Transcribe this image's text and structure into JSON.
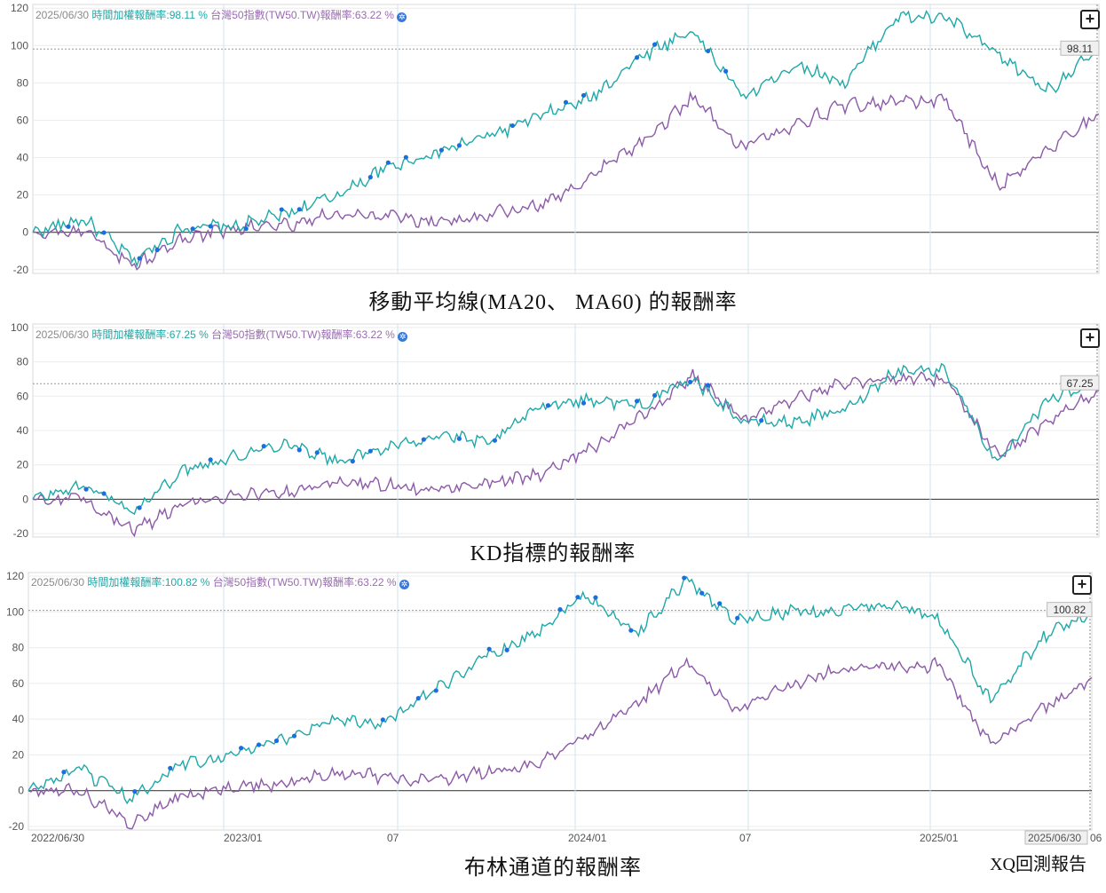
{
  "charts": [
    {
      "caption": "移動平均線(MA20、 MA60) 的報酬率",
      "legend": {
        "date": "2025/06/30",
        "s1": "時間加權報酬率:98.11 %",
        "s2": "台灣50指數(TW50.TW)報酬率:63.22 %"
      },
      "end_label": "98.11"
    },
    {
      "caption": "KD指標的報酬率",
      "legend": {
        "date": "2025/06/30",
        "s1": "時間加權報酬率:67.25 %",
        "s2": "台灣50指數(TW50.TW)報酬率:63.22 %"
      },
      "end_label": "67.25"
    },
    {
      "caption": "布林通道的報酬率",
      "legend": {
        "date": "2025/06/30",
        "s1": "時間加權報酬率:100.82 %",
        "s2": "台灣50指數(TW50.TW)報酬率:63.22 %"
      },
      "end_label": "100.82"
    }
  ],
  "x_axis": {
    "labels": [
      "2022/06/30",
      "2023/01",
      "07",
      "2024/01",
      "07",
      "2025/01",
      "2025/06/30",
      "06"
    ]
  },
  "credit": "XQ回測報告",
  "colors": {
    "strategy": "#1fa8a8",
    "benchmark": "#8c5aa8",
    "trade": "#1a6fe0"
  },
  "chart_data": [
    {
      "type": "line",
      "title": "移動平均線(MA20、 MA60) 的報酬率",
      "ylim": [
        -22,
        122
      ],
      "yticks": [
        -20,
        0,
        20,
        40,
        60,
        80,
        100,
        120
      ],
      "x": [
        "2022-06",
        "2022-08",
        "2022-10",
        "2022-12",
        "2023-02",
        "2023-04",
        "2023-06",
        "2023-08",
        "2023-10",
        "2023-12",
        "2024-02",
        "2024-04",
        "2024-06",
        "2024-07",
        "2024-08",
        "2024-10",
        "2024-12",
        "2025-02",
        "2025-03",
        "2025-04",
        "2025-05",
        "2025-06"
      ],
      "series": [
        {
          "name": "時間加權報酬率",
          "values": [
            0,
            7,
            -15,
            3,
            3,
            10,
            20,
            35,
            43,
            52,
            62,
            72,
            95,
            108,
            72,
            90,
            80,
            115,
            115,
            95,
            76,
            98.11
          ]
        },
        {
          "name": "台灣50指數(TW50.TW)報酬率",
          "values": [
            0,
            0,
            -18,
            -3,
            2,
            4,
            10,
            8,
            5,
            10,
            14,
            30,
            48,
            72,
            45,
            58,
            68,
            70,
            70,
            25,
            45,
            63.22
          ]
        }
      ],
      "grid": true
    },
    {
      "type": "line",
      "title": "KD指標的報酬率",
      "ylim": [
        -22,
        102
      ],
      "yticks": [
        -20,
        0,
        20,
        40,
        60,
        80,
        100
      ],
      "x": [
        "2022-06",
        "2022-08",
        "2022-10",
        "2022-12",
        "2023-02",
        "2023-04",
        "2023-06",
        "2023-08",
        "2023-10",
        "2023-12",
        "2024-02",
        "2024-04",
        "2024-06",
        "2024-07",
        "2024-08",
        "2024-10",
        "2024-12",
        "2025-02",
        "2025-03",
        "2025-04",
        "2025-05",
        "2025-06"
      ],
      "series": [
        {
          "name": "時間加權報酬率",
          "values": [
            0,
            8,
            -7,
            18,
            25,
            33,
            22,
            30,
            38,
            32,
            55,
            58,
            55,
            70,
            45,
            45,
            52,
            75,
            75,
            20,
            58,
            67.25
          ]
        },
        {
          "name": "台灣50指數(TW50.TW)報酬率",
          "values": [
            0,
            0,
            -18,
            -3,
            2,
            4,
            10,
            8,
            5,
            10,
            14,
            30,
            48,
            72,
            45,
            58,
            68,
            70,
            70,
            25,
            45,
            63.22
          ]
        }
      ],
      "grid": true
    },
    {
      "type": "line",
      "title": "布林通道的報酬率",
      "ylim": [
        -22,
        122
      ],
      "yticks": [
        -20,
        0,
        20,
        40,
        60,
        80,
        100,
        120
      ],
      "x": [
        "2022-06",
        "2022-08",
        "2022-10",
        "2022-12",
        "2023-02",
        "2023-04",
        "2023-06",
        "2023-08",
        "2023-10",
        "2023-12",
        "2024-02",
        "2024-04",
        "2024-06",
        "2024-07",
        "2024-08",
        "2024-10",
        "2024-12",
        "2025-02",
        "2025-03",
        "2025-04",
        "2025-05",
        "2025-06"
      ],
      "series": [
        {
          "name": "時間加權報酬率",
          "values": [
            0,
            12,
            -5,
            15,
            20,
            28,
            40,
            38,
            55,
            75,
            88,
            110,
            88,
            118,
            95,
            100,
            100,
            105,
            95,
            50,
            85,
            100.82
          ]
        },
        {
          "name": "台灣50指數(TW50.TW)報酬率",
          "values": [
            0,
            0,
            -18,
            -3,
            2,
            4,
            10,
            8,
            5,
            10,
            14,
            30,
            48,
            72,
            45,
            58,
            68,
            70,
            70,
            25,
            45,
            63.22
          ]
        }
      ],
      "grid": true
    }
  ]
}
